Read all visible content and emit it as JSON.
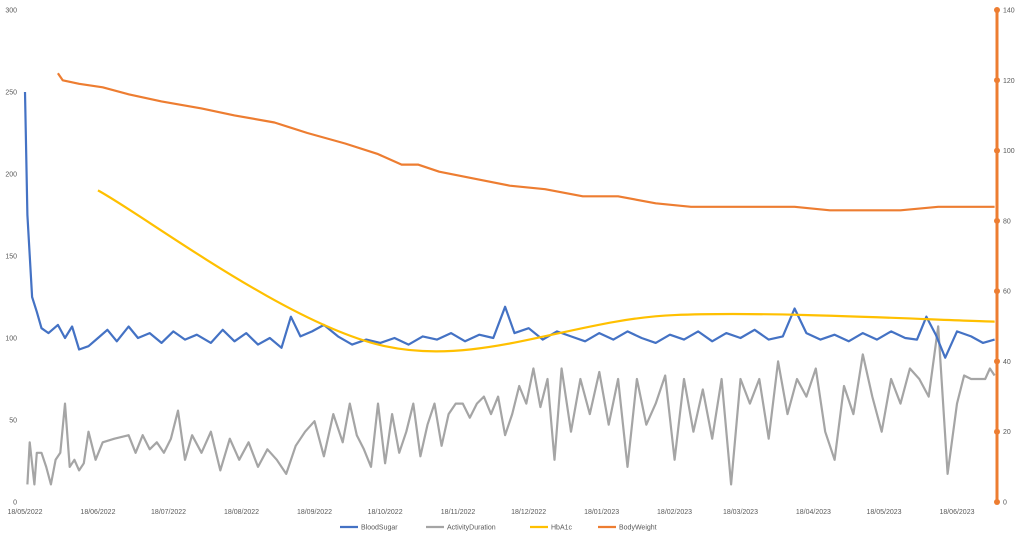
{
  "chart_data": {
    "type": "line",
    "x_axis": {
      "type": "date",
      "tick_labels": [
        "18/05/2022",
        "18/06/2022",
        "18/07/2022",
        "18/08/2022",
        "18/09/2022",
        "18/10/2022",
        "18/11/2022",
        "18/12/2022",
        "18/01/2023",
        "18/02/2023",
        "18/03/2023",
        "18/04/2023",
        "18/05/2023",
        "18/06/2023"
      ],
      "range": [
        "2022-05-18",
        "2023-07-05"
      ]
    },
    "y_left": {
      "ylim": [
        0,
        300
      ],
      "ticks": [
        0,
        50,
        100,
        150,
        200,
        250,
        300
      ]
    },
    "y_right": {
      "ylim": [
        0,
        140
      ],
      "ticks": [
        0,
        20,
        40,
        60,
        80,
        100,
        120,
        140
      ],
      "color": "#ED7D31"
    },
    "grid": false,
    "legend_position": "bottom",
    "series": [
      {
        "name": "BloodSugar",
        "axis": "left",
        "color": "#4472C4",
        "points": [
          [
            "2022-05-18",
            250
          ],
          [
            "2022-05-19",
            175
          ],
          [
            "2022-05-21",
            125
          ],
          [
            "2022-05-23",
            116
          ],
          [
            "2022-05-25",
            106
          ],
          [
            "2022-05-28",
            103
          ],
          [
            "2022-06-01",
            108
          ],
          [
            "2022-06-04",
            100
          ],
          [
            "2022-06-07",
            107
          ],
          [
            "2022-06-10",
            93
          ],
          [
            "2022-06-14",
            95
          ],
          [
            "2022-06-18",
            100
          ],
          [
            "2022-06-22",
            105
          ],
          [
            "2022-06-26",
            98
          ],
          [
            "2022-07-01",
            107
          ],
          [
            "2022-07-05",
            100
          ],
          [
            "2022-07-10",
            103
          ],
          [
            "2022-07-15",
            97
          ],
          [
            "2022-07-20",
            104
          ],
          [
            "2022-07-25",
            99
          ],
          [
            "2022-07-30",
            102
          ],
          [
            "2022-08-05",
            97
          ],
          [
            "2022-08-10",
            105
          ],
          [
            "2022-08-15",
            98
          ],
          [
            "2022-08-20",
            103
          ],
          [
            "2022-08-25",
            96
          ],
          [
            "2022-08-30",
            100
          ],
          [
            "2022-09-04",
            94
          ],
          [
            "2022-09-08",
            113
          ],
          [
            "2022-09-12",
            101
          ],
          [
            "2022-09-17",
            104
          ],
          [
            "2022-09-22",
            108
          ],
          [
            "2022-09-28",
            101
          ],
          [
            "2022-10-04",
            96
          ],
          [
            "2022-10-10",
            99
          ],
          [
            "2022-10-16",
            97
          ],
          [
            "2022-10-22",
            100
          ],
          [
            "2022-10-28",
            96
          ],
          [
            "2022-11-03",
            101
          ],
          [
            "2022-11-09",
            99
          ],
          [
            "2022-11-15",
            103
          ],
          [
            "2022-11-21",
            98
          ],
          [
            "2022-11-27",
            102
          ],
          [
            "2022-12-03",
            100
          ],
          [
            "2022-12-08",
            119
          ],
          [
            "2022-12-12",
            103
          ],
          [
            "2022-12-18",
            106
          ],
          [
            "2022-12-24",
            99
          ],
          [
            "2022-12-30",
            104
          ],
          [
            "2023-01-05",
            101
          ],
          [
            "2023-01-11",
            98
          ],
          [
            "2023-01-17",
            103
          ],
          [
            "2023-01-23",
            99
          ],
          [
            "2023-01-29",
            104
          ],
          [
            "2023-02-04",
            100
          ],
          [
            "2023-02-10",
            97
          ],
          [
            "2023-02-16",
            102
          ],
          [
            "2023-02-22",
            99
          ],
          [
            "2023-02-28",
            104
          ],
          [
            "2023-03-06",
            98
          ],
          [
            "2023-03-12",
            103
          ],
          [
            "2023-03-18",
            100
          ],
          [
            "2023-03-24",
            105
          ],
          [
            "2023-03-30",
            99
          ],
          [
            "2023-04-05",
            101
          ],
          [
            "2023-04-10",
            118
          ],
          [
            "2023-04-15",
            103
          ],
          [
            "2023-04-21",
            99
          ],
          [
            "2023-04-27",
            102
          ],
          [
            "2023-05-03",
            98
          ],
          [
            "2023-05-09",
            103
          ],
          [
            "2023-05-15",
            99
          ],
          [
            "2023-05-21",
            104
          ],
          [
            "2023-05-27",
            100
          ],
          [
            "2023-06-01",
            99
          ],
          [
            "2023-06-05",
            113
          ],
          [
            "2023-06-09",
            102
          ],
          [
            "2023-06-13",
            88
          ],
          [
            "2023-06-18",
            104
          ],
          [
            "2023-06-24",
            101
          ],
          [
            "2023-06-29",
            97
          ],
          [
            "2023-07-04",
            99
          ]
        ]
      },
      {
        "name": "ActivityDuration",
        "axis": "right",
        "color": "#A5A5A5",
        "points": [
          [
            "2022-05-19",
            5
          ],
          [
            "2022-05-20",
            17
          ],
          [
            "2022-05-22",
            5
          ],
          [
            "2022-05-23",
            14
          ],
          [
            "2022-05-25",
            14
          ],
          [
            "2022-05-27",
            10
          ],
          [
            "2022-05-29",
            5
          ],
          [
            "2022-05-31",
            12
          ],
          [
            "2022-06-02",
            14
          ],
          [
            "2022-06-04",
            28
          ],
          [
            "2022-06-06",
            10
          ],
          [
            "2022-06-08",
            12
          ],
          [
            "2022-06-10",
            9
          ],
          [
            "2022-06-12",
            11
          ],
          [
            "2022-06-14",
            20
          ],
          [
            "2022-06-17",
            12
          ],
          [
            "2022-06-20",
            17
          ],
          [
            "2022-06-25",
            18
          ],
          [
            "2022-07-01",
            19
          ],
          [
            "2022-07-04",
            14
          ],
          [
            "2022-07-07",
            19
          ],
          [
            "2022-07-10",
            15
          ],
          [
            "2022-07-13",
            17
          ],
          [
            "2022-07-16",
            14
          ],
          [
            "2022-07-19",
            18
          ],
          [
            "2022-07-22",
            26
          ],
          [
            "2022-07-25",
            12
          ],
          [
            "2022-07-28",
            19
          ],
          [
            "2022-08-01",
            14
          ],
          [
            "2022-08-05",
            20
          ],
          [
            "2022-08-09",
            9
          ],
          [
            "2022-08-13",
            18
          ],
          [
            "2022-08-17",
            12
          ],
          [
            "2022-08-21",
            17
          ],
          [
            "2022-08-25",
            10
          ],
          [
            "2022-08-29",
            15
          ],
          [
            "2022-09-02",
            12
          ],
          [
            "2022-09-06",
            8
          ],
          [
            "2022-09-10",
            16
          ],
          [
            "2022-09-14",
            20
          ],
          [
            "2022-09-18",
            23
          ],
          [
            "2022-09-22",
            13
          ],
          [
            "2022-09-26",
            25
          ],
          [
            "2022-09-30",
            17
          ],
          [
            "2022-10-03",
            28
          ],
          [
            "2022-10-06",
            19
          ],
          [
            "2022-10-09",
            15
          ],
          [
            "2022-10-12",
            10
          ],
          [
            "2022-10-15",
            28
          ],
          [
            "2022-10-18",
            11
          ],
          [
            "2022-10-21",
            25
          ],
          [
            "2022-10-24",
            14
          ],
          [
            "2022-10-27",
            20
          ],
          [
            "2022-10-30",
            28
          ],
          [
            "2022-11-02",
            13
          ],
          [
            "2022-11-05",
            22
          ],
          [
            "2022-11-08",
            28
          ],
          [
            "2022-11-11",
            16
          ],
          [
            "2022-11-14",
            25
          ],
          [
            "2022-11-17",
            28
          ],
          [
            "2022-11-20",
            28
          ],
          [
            "2022-11-23",
            24
          ],
          [
            "2022-11-26",
            28
          ],
          [
            "2022-11-29",
            30
          ],
          [
            "2022-12-02",
            25
          ],
          [
            "2022-12-05",
            30
          ],
          [
            "2022-12-08",
            19
          ],
          [
            "2022-12-11",
            25
          ],
          [
            "2022-12-14",
            33
          ],
          [
            "2022-12-17",
            28
          ],
          [
            "2022-12-20",
            38
          ],
          [
            "2022-12-23",
            27
          ],
          [
            "2022-12-26",
            35
          ],
          [
            "2022-12-29",
            12
          ],
          [
            "2023-01-01",
            38
          ],
          [
            "2023-01-05",
            20
          ],
          [
            "2023-01-09",
            35
          ],
          [
            "2023-01-13",
            25
          ],
          [
            "2023-01-17",
            37
          ],
          [
            "2023-01-21",
            22
          ],
          [
            "2023-01-25",
            35
          ],
          [
            "2023-01-29",
            10
          ],
          [
            "2023-02-02",
            35
          ],
          [
            "2023-02-06",
            22
          ],
          [
            "2023-02-10",
            28
          ],
          [
            "2023-02-14",
            36
          ],
          [
            "2023-02-18",
            12
          ],
          [
            "2023-02-22",
            35
          ],
          [
            "2023-02-26",
            20
          ],
          [
            "2023-03-02",
            32
          ],
          [
            "2023-03-06",
            18
          ],
          [
            "2023-03-10",
            35
          ],
          [
            "2023-03-14",
            5
          ],
          [
            "2023-03-18",
            35
          ],
          [
            "2023-03-22",
            28
          ],
          [
            "2023-03-26",
            35
          ],
          [
            "2023-03-30",
            18
          ],
          [
            "2023-04-03",
            40
          ],
          [
            "2023-04-07",
            25
          ],
          [
            "2023-04-11",
            35
          ],
          [
            "2023-04-15",
            30
          ],
          [
            "2023-04-19",
            38
          ],
          [
            "2023-04-23",
            20
          ],
          [
            "2023-04-27",
            12
          ],
          [
            "2023-05-01",
            33
          ],
          [
            "2023-05-05",
            25
          ],
          [
            "2023-05-09",
            42
          ],
          [
            "2023-05-13",
            30
          ],
          [
            "2023-05-17",
            20
          ],
          [
            "2023-05-21",
            35
          ],
          [
            "2023-05-25",
            28
          ],
          [
            "2023-05-29",
            38
          ],
          [
            "2023-06-02",
            35
          ],
          [
            "2023-06-06",
            30
          ],
          [
            "2023-06-10",
            50
          ],
          [
            "2023-06-14",
            8
          ],
          [
            "2023-06-18",
            28
          ],
          [
            "2023-06-21",
            36
          ],
          [
            "2023-06-24",
            35
          ],
          [
            "2023-06-27",
            35
          ],
          [
            "2023-06-30",
            35
          ],
          [
            "2023-07-02",
            38
          ],
          [
            "2023-07-04",
            36
          ]
        ]
      },
      {
        "name": "HbA1c",
        "axis": "left",
        "color": "#FFC000",
        "smooth": true,
        "points": [
          [
            "2022-06-18",
            190
          ],
          [
            "2022-10-18",
            95
          ],
          [
            "2023-02-18",
            114
          ],
          [
            "2023-07-04",
            110
          ]
        ]
      },
      {
        "name": "BodyWeight",
        "axis": "right",
        "color": "#ED7D31",
        "points": [
          [
            "2022-06-01",
            122
          ],
          [
            "2022-06-03",
            120
          ],
          [
            "2022-06-10",
            119
          ],
          [
            "2022-06-20",
            118
          ],
          [
            "2022-07-01",
            116
          ],
          [
            "2022-07-15",
            114
          ],
          [
            "2022-08-01",
            112
          ],
          [
            "2022-08-15",
            110
          ],
          [
            "2022-09-01",
            108
          ],
          [
            "2022-09-15",
            105
          ],
          [
            "2022-10-01",
            102
          ],
          [
            "2022-10-15",
            99
          ],
          [
            "2022-10-25",
            96
          ],
          [
            "2022-11-01",
            96
          ],
          [
            "2022-11-10",
            94
          ],
          [
            "2022-11-25",
            92
          ],
          [
            "2022-12-10",
            90
          ],
          [
            "2022-12-25",
            89
          ],
          [
            "2023-01-10",
            87
          ],
          [
            "2023-01-25",
            87
          ],
          [
            "2023-02-10",
            85
          ],
          [
            "2023-02-25",
            84
          ],
          [
            "2023-03-10",
            84
          ],
          [
            "2023-03-25",
            84
          ],
          [
            "2023-04-10",
            84
          ],
          [
            "2023-04-25",
            83
          ],
          [
            "2023-05-10",
            83
          ],
          [
            "2023-05-25",
            83
          ],
          [
            "2023-06-10",
            84
          ],
          [
            "2023-06-25",
            84
          ],
          [
            "2023-07-04",
            84
          ]
        ]
      }
    ]
  }
}
